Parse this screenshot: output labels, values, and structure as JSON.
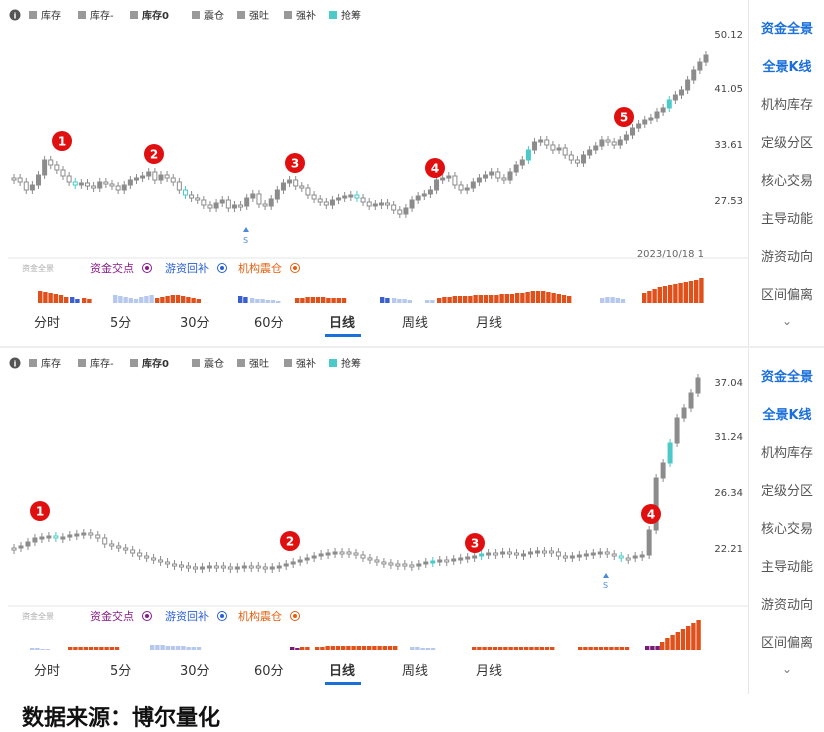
{
  "legend": {
    "info_icon": "info-circle-icon",
    "items": [
      {
        "label": "库存",
        "color": "#999999"
      },
      {
        "label": "库存-",
        "color": "#999999"
      },
      {
        "label": "库存0",
        "color": "#999999"
      },
      {
        "label": "震仓",
        "color": "#999999"
      },
      {
        "label": "强吐",
        "color": "#999999"
      },
      {
        "label": "强补",
        "color": "#999999"
      },
      {
        "label": "抢筹",
        "color": "#4cc9c9"
      }
    ]
  },
  "indicator_bar": {
    "panorama_label": "资金全景",
    "items": [
      {
        "label": "资金交点",
        "color": "#8a1a8a"
      },
      {
        "label": "游资回补",
        "color": "#2a5fd0"
      },
      {
        "label": "机构震仓",
        "color": "#e06010"
      }
    ]
  },
  "tabs": [
    "分时",
    "5分",
    "30分",
    "60分",
    "日线",
    "周线",
    "月线"
  ],
  "active_tab": "日线",
  "sidebar": {
    "items": [
      "资金全景",
      "全景K线",
      "机构库存",
      "定级分区",
      "核心交易",
      "主导动能",
      "游资动向",
      "区间偏离"
    ],
    "active": [
      "资金全景",
      "全景K线"
    ],
    "more_icon": "chevron-down-icon"
  },
  "colors": {
    "candle": "#8c8c8c",
    "highlight": "#4cc9c9",
    "marker": "#e01010",
    "bar_orange": "#e0501a",
    "bar_blue_light": "#b7c8ee",
    "bar_blue": "#3a5fd0",
    "bar_purple": "#7a1a7a",
    "accent": "#1a6fd8"
  },
  "panel1": {
    "y_ticks": [
      "50.12",
      "41.05",
      "33.61",
      "27.53"
    ],
    "date_label": "2023/10/18 1",
    "s_marker": "S",
    "markers": [
      "1",
      "2",
      "3",
      "4",
      "5"
    ]
  },
  "panel2": {
    "y_ticks": [
      "37.04",
      "31.24",
      "26.34",
      "22.21"
    ],
    "s_marker": "S",
    "markers": [
      "1",
      "2",
      "3",
      "4"
    ]
  },
  "footer": "数据来源：博尔量化"
}
